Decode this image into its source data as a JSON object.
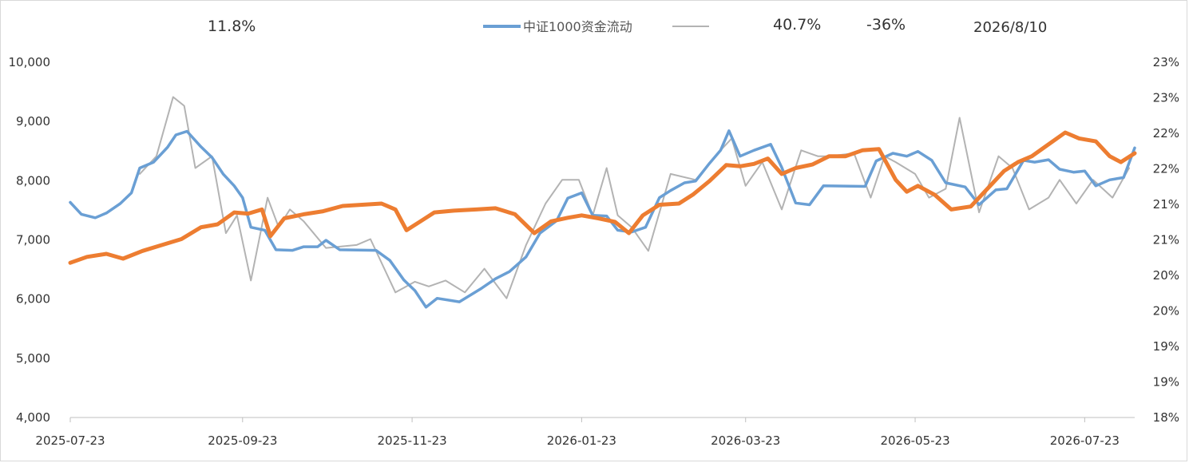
{
  "header": {
    "stat_1": "11.8%",
    "stat_2": "40.7%",
    "stat_3": "-36%",
    "date": "2026/8/10"
  },
  "chart_data": {
    "type": "line",
    "title": "",
    "legend_position": "top",
    "grid": false,
    "x_ticks": [
      "2025-07-23",
      "2025-09-23",
      "2025-11-23",
      "2026-01-23",
      "2026-03-23",
      "2026-05-23",
      "2026-07-23"
    ],
    "x_range": [
      "2025-07-23",
      "2026-08-10"
    ],
    "y_left": {
      "ticks": [
        "4,000",
        "5,000",
        "6,000",
        "7,000",
        "8,000",
        "9,000",
        "10,000"
      ],
      "range": [
        4000,
        10000
      ]
    },
    "y_right": {
      "ticks": [
        "18%",
        "19%",
        "19%",
        "20%",
        "20%",
        "21%",
        "21%",
        "22%",
        "22%",
        "23%",
        "23%"
      ]
    },
    "series": [
      {
        "name": "中证1000资金流动",
        "axis": "left",
        "color": "#6a9fd4",
        "points": [
          [
            "2025-07-23",
            7620
          ],
          [
            "2025-07-27",
            7420
          ],
          [
            "2025-08-01",
            7360
          ],
          [
            "2025-08-05",
            7440
          ],
          [
            "2025-08-10",
            7600
          ],
          [
            "2025-08-14",
            7780
          ],
          [
            "2025-08-17",
            8200
          ],
          [
            "2025-08-22",
            8300
          ],
          [
            "2025-08-27",
            8550
          ],
          [
            "2025-08-30",
            8760
          ],
          [
            "2025-09-03",
            8820
          ],
          [
            "2025-09-08",
            8560
          ],
          [
            "2025-09-12",
            8380
          ],
          [
            "2025-09-16",
            8100
          ],
          [
            "2025-09-20",
            7900
          ],
          [
            "2025-09-23",
            7700
          ],
          [
            "2025-09-26",
            7200
          ],
          [
            "2025-10-01",
            7150
          ],
          [
            "2025-10-05",
            6820
          ],
          [
            "2025-10-11",
            6810
          ],
          [
            "2025-10-15",
            6870
          ],
          [
            "2025-10-20",
            6870
          ],
          [
            "2025-10-23",
            6980
          ],
          [
            "2025-10-28",
            6820
          ],
          [
            "2025-11-10",
            6810
          ],
          [
            "2025-11-15",
            6640
          ],
          [
            "2025-11-20",
            6310
          ],
          [
            "2025-11-24",
            6130
          ],
          [
            "2025-11-28",
            5850
          ],
          [
            "2025-12-02",
            6000
          ],
          [
            "2025-12-10",
            5940
          ],
          [
            "2025-12-18",
            6170
          ],
          [
            "2025-12-23",
            6330
          ],
          [
            "2025-12-28",
            6450
          ],
          [
            "2026-01-03",
            6700
          ],
          [
            "2026-01-08",
            7100
          ],
          [
            "2026-01-14",
            7310
          ],
          [
            "2026-01-18",
            7690
          ],
          [
            "2026-01-23",
            7780
          ],
          [
            "2026-01-27",
            7400
          ],
          [
            "2026-02-01",
            7390
          ],
          [
            "2026-02-05",
            7150
          ],
          [
            "2026-02-10",
            7120
          ],
          [
            "2026-02-15",
            7200
          ],
          [
            "2026-02-20",
            7700
          ],
          [
            "2026-02-24",
            7820
          ],
          [
            "2026-03-01",
            7950
          ],
          [
            "2026-03-05",
            7980
          ],
          [
            "2026-03-10",
            8280
          ],
          [
            "2026-03-14",
            8500
          ],
          [
            "2026-03-17",
            8830
          ],
          [
            "2026-03-21",
            8400
          ],
          [
            "2026-03-26",
            8500
          ],
          [
            "2026-04-01",
            8600
          ],
          [
            "2026-04-05",
            8210
          ],
          [
            "2026-04-10",
            7610
          ],
          [
            "2026-04-15",
            7580
          ],
          [
            "2026-04-20",
            7900
          ],
          [
            "2026-05-05",
            7890
          ],
          [
            "2026-05-09",
            8320
          ],
          [
            "2026-05-15",
            8450
          ],
          [
            "2026-05-20",
            8400
          ],
          [
            "2026-05-24",
            8480
          ],
          [
            "2026-05-29",
            8330
          ],
          [
            "2026-06-03",
            7950
          ],
          [
            "2026-06-10",
            7880
          ],
          [
            "2026-06-15",
            7580
          ],
          [
            "2026-06-21",
            7830
          ],
          [
            "2026-06-25",
            7850
          ],
          [
            "2026-07-01",
            8330
          ],
          [
            "2026-07-05",
            8300
          ],
          [
            "2026-07-10",
            8340
          ],
          [
            "2026-07-14",
            8180
          ],
          [
            "2026-07-19",
            8130
          ],
          [
            "2026-07-23",
            8150
          ],
          [
            "2026-07-27",
            7900
          ],
          [
            "2026-08-01",
            8000
          ],
          [
            "2026-08-06",
            8040
          ],
          [
            "2026-08-10",
            8540
          ]
        ]
      },
      {
        "name": "",
        "axis": "left",
        "color": "#b3b3b3",
        "points": [
          [
            "2025-08-17",
            8100
          ],
          [
            "2025-08-23",
            8400
          ],
          [
            "2025-08-29",
            9400
          ],
          [
            "2025-09-02",
            9250
          ],
          [
            "2025-09-06",
            8200
          ],
          [
            "2025-09-12",
            8400
          ],
          [
            "2025-09-17",
            7100
          ],
          [
            "2025-09-21",
            7400
          ],
          [
            "2025-09-26",
            6300
          ],
          [
            "2025-10-02",
            7700
          ],
          [
            "2025-10-06",
            7200
          ],
          [
            "2025-10-10",
            7500
          ],
          [
            "2025-10-15",
            7300
          ],
          [
            "2025-10-23",
            6850
          ],
          [
            "2025-11-03",
            6900
          ],
          [
            "2025-11-08",
            7000
          ],
          [
            "2025-11-17",
            6100
          ],
          [
            "2025-11-24",
            6280
          ],
          [
            "2025-11-29",
            6200
          ],
          [
            "2025-12-05",
            6300
          ],
          [
            "2025-12-12",
            6100
          ],
          [
            "2025-12-19",
            6500
          ],
          [
            "2025-12-27",
            6000
          ],
          [
            "2026-01-03",
            6900
          ],
          [
            "2026-01-10",
            7600
          ],
          [
            "2026-01-16",
            8000
          ],
          [
            "2026-01-22",
            8000
          ],
          [
            "2026-01-27",
            7400
          ],
          [
            "2026-02-01",
            8200
          ],
          [
            "2026-02-05",
            7400
          ],
          [
            "2026-02-10",
            7200
          ],
          [
            "2026-02-16",
            6800
          ],
          [
            "2026-02-24",
            8100
          ],
          [
            "2026-03-05",
            8000
          ],
          [
            "2026-03-12",
            8400
          ],
          [
            "2026-03-18",
            8700
          ],
          [
            "2026-03-23",
            7900
          ],
          [
            "2026-03-29",
            8300
          ],
          [
            "2026-04-05",
            7500
          ],
          [
            "2026-04-12",
            8500
          ],
          [
            "2026-04-18",
            8400
          ],
          [
            "2026-04-22",
            8400
          ],
          [
            "2026-05-01",
            8450
          ],
          [
            "2026-05-07",
            7700
          ],
          [
            "2026-05-12",
            8400
          ],
          [
            "2026-05-16",
            8300
          ],
          [
            "2026-05-23",
            8100
          ],
          [
            "2026-05-28",
            7700
          ],
          [
            "2026-06-03",
            7850
          ],
          [
            "2026-06-08",
            9050
          ],
          [
            "2026-06-15",
            7450
          ],
          [
            "2026-06-22",
            8400
          ],
          [
            "2026-06-27",
            8200
          ],
          [
            "2026-07-03",
            7500
          ],
          [
            "2026-07-10",
            7700
          ],
          [
            "2026-07-14",
            8000
          ],
          [
            "2026-07-20",
            7600
          ],
          [
            "2026-07-26",
            8000
          ],
          [
            "2026-08-02",
            7700
          ],
          [
            "2026-08-08",
            8200
          ]
        ]
      },
      {
        "name": "",
        "axis": "left",
        "color": "#ed7d31",
        "points": [
          [
            "2025-07-23",
            6600
          ],
          [
            "2025-07-29",
            6700
          ],
          [
            "2025-08-05",
            6750
          ],
          [
            "2025-08-11",
            6670
          ],
          [
            "2025-08-18",
            6800
          ],
          [
            "2025-08-25",
            6900
          ],
          [
            "2025-09-01",
            7000
          ],
          [
            "2025-09-08",
            7200
          ],
          [
            "2025-09-14",
            7250
          ],
          [
            "2025-09-20",
            7450
          ],
          [
            "2025-09-25",
            7430
          ],
          [
            "2025-09-30",
            7500
          ],
          [
            "2025-10-03",
            7050
          ],
          [
            "2025-10-08",
            7350
          ],
          [
            "2025-10-15",
            7420
          ],
          [
            "2025-10-22",
            7470
          ],
          [
            "2025-10-29",
            7560
          ],
          [
            "2025-11-05",
            7580
          ],
          [
            "2025-11-12",
            7600
          ],
          [
            "2025-11-17",
            7500
          ],
          [
            "2025-11-21",
            7150
          ],
          [
            "2025-11-26",
            7300
          ],
          [
            "2025-12-01",
            7450
          ],
          [
            "2025-12-08",
            7480
          ],
          [
            "2025-12-16",
            7500
          ],
          [
            "2025-12-23",
            7520
          ],
          [
            "2025-12-30",
            7420
          ],
          [
            "2026-01-06",
            7100
          ],
          [
            "2026-01-12",
            7300
          ],
          [
            "2026-01-18",
            7360
          ],
          [
            "2026-01-23",
            7400
          ],
          [
            "2026-01-29",
            7350
          ],
          [
            "2026-02-04",
            7290
          ],
          [
            "2026-02-09",
            7100
          ],
          [
            "2026-02-14",
            7400
          ],
          [
            "2026-02-20",
            7580
          ],
          [
            "2026-02-27",
            7600
          ],
          [
            "2026-03-04",
            7750
          ],
          [
            "2026-03-10",
            7980
          ],
          [
            "2026-03-16",
            8250
          ],
          [
            "2026-03-21",
            8230
          ],
          [
            "2026-03-26",
            8270
          ],
          [
            "2026-03-31",
            8360
          ],
          [
            "2026-04-05",
            8100
          ],
          [
            "2026-04-10",
            8200
          ],
          [
            "2026-04-16",
            8260
          ],
          [
            "2026-04-22",
            8400
          ],
          [
            "2026-04-28",
            8400
          ],
          [
            "2026-05-04",
            8500
          ],
          [
            "2026-05-10",
            8520
          ],
          [
            "2026-05-16",
            8000
          ],
          [
            "2026-05-20",
            7800
          ],
          [
            "2026-05-24",
            7900
          ],
          [
            "2026-05-30",
            7750
          ],
          [
            "2026-06-05",
            7500
          ],
          [
            "2026-06-12",
            7550
          ],
          [
            "2026-06-18",
            7850
          ],
          [
            "2026-06-24",
            8150
          ],
          [
            "2026-06-29",
            8300
          ],
          [
            "2026-07-04",
            8400
          ],
          [
            "2026-07-10",
            8600
          ],
          [
            "2026-07-16",
            8800
          ],
          [
            "2026-07-21",
            8700
          ],
          [
            "2026-07-27",
            8650
          ],
          [
            "2026-08-01",
            8400
          ],
          [
            "2026-08-05",
            8300
          ],
          [
            "2026-08-10",
            8450
          ]
        ]
      }
    ]
  }
}
